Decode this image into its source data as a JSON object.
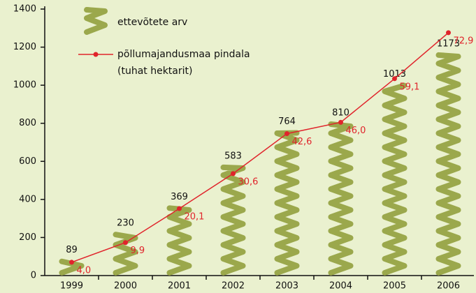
{
  "chart_data": {
    "type": "bar",
    "categories": [
      "1999",
      "2000",
      "2001",
      "2002",
      "2003",
      "2004",
      "2005",
      "2006"
    ],
    "series": [
      {
        "name": "ettevõtete arv",
        "type": "bar",
        "color": "#9ba84c",
        "values": [
          89,
          230,
          369,
          583,
          764,
          810,
          1013,
          1173
        ]
      },
      {
        "name": "põllumajandusmaa pindala (tuhat hektarit)",
        "type": "line",
        "axis": "y2",
        "color": "#e0242b",
        "values": [
          4.0,
          9.9,
          20.1,
          30.6,
          42.6,
          46.0,
          59.1,
          72.9
        ],
        "value_labels": [
          "4,0",
          "9,9",
          "20,1",
          "30,6",
          "42,6",
          "46,0",
          "59,1",
          "72,9"
        ]
      }
    ],
    "ylim": [
      0,
      1400
    ],
    "yticks": [
      0,
      200,
      400,
      600,
      800,
      1000,
      1200,
      1400
    ],
    "y2lim": [
      0,
      80
    ]
  }
}
